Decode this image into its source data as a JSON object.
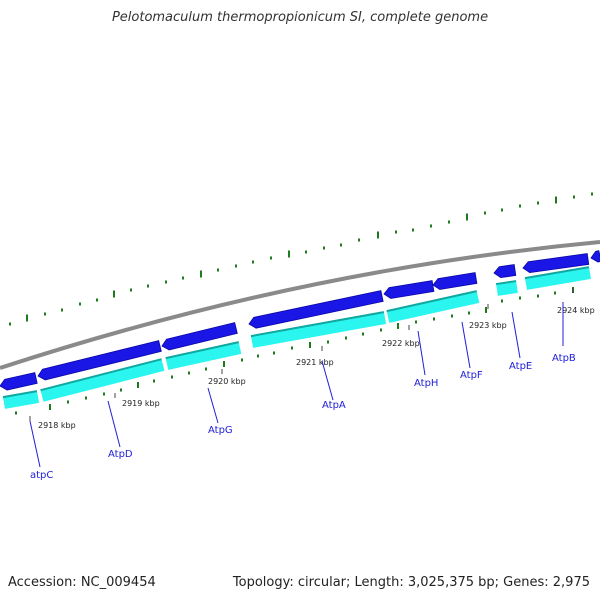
{
  "title": "Pelotomaculum thermopropionicum SI, complete genome",
  "footer": {
    "accession": "Accession: NC_009454",
    "info": "Topology: circular; Length: 3,025,375 bp; Genes: 2,975"
  },
  "colors": {
    "forward_gene": "#1a16e6",
    "forward_gene_dark": "#0a07a6",
    "cds": "#2af5ef",
    "cds_dark": "#10a8a0",
    "backbone": "#8a8a8a",
    "gc_ticks": "#1d7a1d",
    "label": "#2020d8"
  },
  "scale_labels": [
    "2918 kbp",
    "2919 kbp",
    "2920 kbp",
    "2921 kbp",
    "2922 kbp",
    "2923 kbp",
    "2924 kbp"
  ],
  "genes": [
    {
      "name": "atpC"
    },
    {
      "name": "AtpD"
    },
    {
      "name": "AtpG"
    },
    {
      "name": "AtpA"
    },
    {
      "name": "AtpH"
    },
    {
      "name": "AtpF"
    },
    {
      "name": "AtpE"
    },
    {
      "name": "AtpB"
    }
  ]
}
